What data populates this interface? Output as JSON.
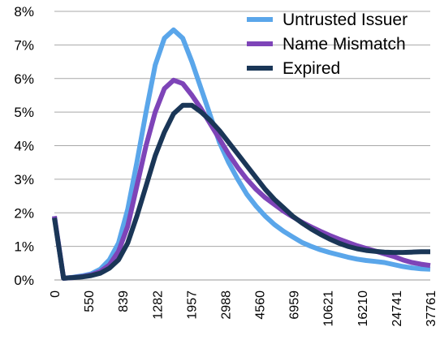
{
  "chart_data": {
    "type": "line",
    "title": "",
    "xlabel": "",
    "ylabel": "",
    "ylim": [
      0,
      8
    ],
    "y_ticks": [
      "0%",
      "1%",
      "2%",
      "3%",
      "4%",
      "5%",
      "6%",
      "7%",
      "8%"
    ],
    "x_tick_labels": [
      "0",
      "550",
      "839",
      "1282",
      "1957",
      "2988",
      "4560",
      "6959",
      "10621",
      "16210",
      "24741",
      "37761"
    ],
    "grid": "horizontal",
    "legend_position": "top-right",
    "series": [
      {
        "name": "Untrusted Issuer",
        "color": "#5aa6ea",
        "values": [
          1.9,
          0.05,
          0.08,
          0.12,
          0.18,
          0.32,
          0.6,
          1.1,
          2.1,
          3.5,
          5.0,
          6.4,
          7.2,
          7.45,
          7.2,
          6.5,
          5.7,
          4.9,
          4.1,
          3.5,
          3.0,
          2.55,
          2.2,
          1.9,
          1.65,
          1.45,
          1.28,
          1.12,
          1.0,
          0.9,
          0.82,
          0.75,
          0.68,
          0.62,
          0.58,
          0.55,
          0.52,
          0.46,
          0.4,
          0.36,
          0.33,
          0.32
        ]
      },
      {
        "name": "Name Mismatch",
        "color": "#7e44b8",
        "values": [
          1.9,
          0.05,
          0.07,
          0.1,
          0.15,
          0.25,
          0.45,
          0.85,
          1.6,
          2.8,
          4.0,
          5.0,
          5.7,
          5.95,
          5.85,
          5.5,
          5.1,
          4.65,
          4.2,
          3.75,
          3.35,
          3.0,
          2.7,
          2.45,
          2.25,
          2.05,
          1.88,
          1.72,
          1.58,
          1.45,
          1.33,
          1.22,
          1.12,
          1.02,
          0.94,
          0.86,
          0.78,
          0.7,
          0.6,
          0.52,
          0.47,
          0.43
        ]
      },
      {
        "name": "Expired",
        "color": "#1a3657",
        "values": [
          1.85,
          0.05,
          0.07,
          0.09,
          0.13,
          0.2,
          0.35,
          0.6,
          1.1,
          1.9,
          2.8,
          3.7,
          4.4,
          4.95,
          5.2,
          5.2,
          5.0,
          4.75,
          4.45,
          4.1,
          3.75,
          3.4,
          3.05,
          2.7,
          2.4,
          2.15,
          1.9,
          1.7,
          1.52,
          1.36,
          1.22,
          1.1,
          1.0,
          0.93,
          0.88,
          0.85,
          0.83,
          0.82,
          0.82,
          0.83,
          0.84,
          0.84
        ]
      }
    ]
  }
}
